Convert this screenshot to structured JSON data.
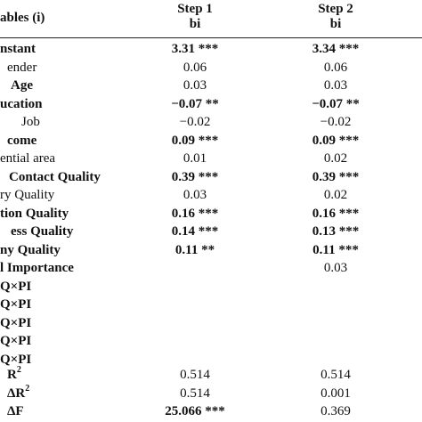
{
  "header": {
    "variables_label": "ables (i)",
    "step1_label": "Step 1",
    "step1_sub": "bi",
    "step2_label": "Step 2",
    "step2_sub": "bi"
  },
  "rows": [
    {
      "label": "nstant",
      "label_bold": true,
      "s1": "3.31 ***",
      "s1_bold": true,
      "s2": "3.34 ***",
      "s2_bold": true
    },
    {
      "label": "ender",
      "label_bold": false,
      "s1": "0.06",
      "s1_bold": false,
      "s2": "0.06",
      "s2_bold": false
    },
    {
      "label": "Age",
      "label_bold": true,
      "s1": "0.03",
      "s1_bold": false,
      "s2": "0.03",
      "s2_bold": false
    },
    {
      "label": "ucation",
      "label_bold": true,
      "s1": "−0.07 **",
      "s1_bold": true,
      "s2": "−0.07 **",
      "s2_bold": true
    },
    {
      "label": "Job",
      "label_bold": false,
      "s1": "−0.02",
      "s1_bold": false,
      "s2": "−0.02",
      "s2_bold": false
    },
    {
      "label": "come",
      "label_bold": true,
      "s1": "0.09 ***",
      "s1_bold": true,
      "s2": "0.09 ***",
      "s2_bold": true
    },
    {
      "label": "ential area",
      "label_bold": false,
      "s1": "0.01",
      "s1_bold": false,
      "s2": "0.02",
      "s2_bold": false
    },
    {
      "label": "Contact Quality",
      "label_bold": true,
      "s1": "0.39 ***",
      "s1_bold": true,
      "s2": "0.39 ***",
      "s2_bold": true
    },
    {
      "label": "ry Quality",
      "label_bold": false,
      "s1": "0.03",
      "s1_bold": false,
      "s2": "0.02",
      "s2_bold": false
    },
    {
      "label": "tion Quality",
      "label_bold": true,
      "s1": "0.16 ***",
      "s1_bold": true,
      "s2": "0.16 ***",
      "s2_bold": true
    },
    {
      "label": "ess Quality",
      "label_bold": true,
      "s1": "0.14 ***",
      "s1_bold": true,
      "s2": "0.13 ***",
      "s2_bold": true
    },
    {
      "label": "ny Quality",
      "label_bold": true,
      "s1": "0.11 **",
      "s1_bold": true,
      "s2": "0.11 ***",
      "s2_bold": true
    },
    {
      "label": "l Importance",
      "label_bold": true,
      "s1": "",
      "s1_bold": false,
      "s2": "0.03",
      "s2_bold": false
    },
    {
      "label": "Q×PI",
      "label_bold": true,
      "s1": "",
      "s1_bold": false,
      "s2": "",
      "s2_bold": false
    },
    {
      "label": "Q×PI",
      "label_bold": true,
      "s1": "",
      "s1_bold": false,
      "s2": "",
      "s2_bold": false
    },
    {
      "label": "Q×PI",
      "label_bold": true,
      "s1": "",
      "s1_bold": false,
      "s2": "",
      "s2_bold": false
    },
    {
      "label": "Q×PI",
      "label_bold": true,
      "s1": "",
      "s1_bold": false,
      "s2": "",
      "s2_bold": false
    },
    {
      "label": "Q×PI",
      "label_bold": true,
      "s1": "",
      "s1_bold": false,
      "s2": "",
      "s2_bold": false
    }
  ],
  "stats": [
    {
      "label": "R",
      "sup": "2",
      "s1": "0.514",
      "s1_bold": false,
      "s2": "0.514",
      "s2_bold": false
    },
    {
      "label": "ΔR",
      "sup": "2",
      "s1": "0.514",
      "s1_bold": false,
      "s2": "0.001",
      "s2_bold": false
    },
    {
      "label": "ΔF",
      "sup": "",
      "s1": "25.066 ***",
      "s1_bold": true,
      "s2": "0.369",
      "s2_bold": false
    }
  ]
}
